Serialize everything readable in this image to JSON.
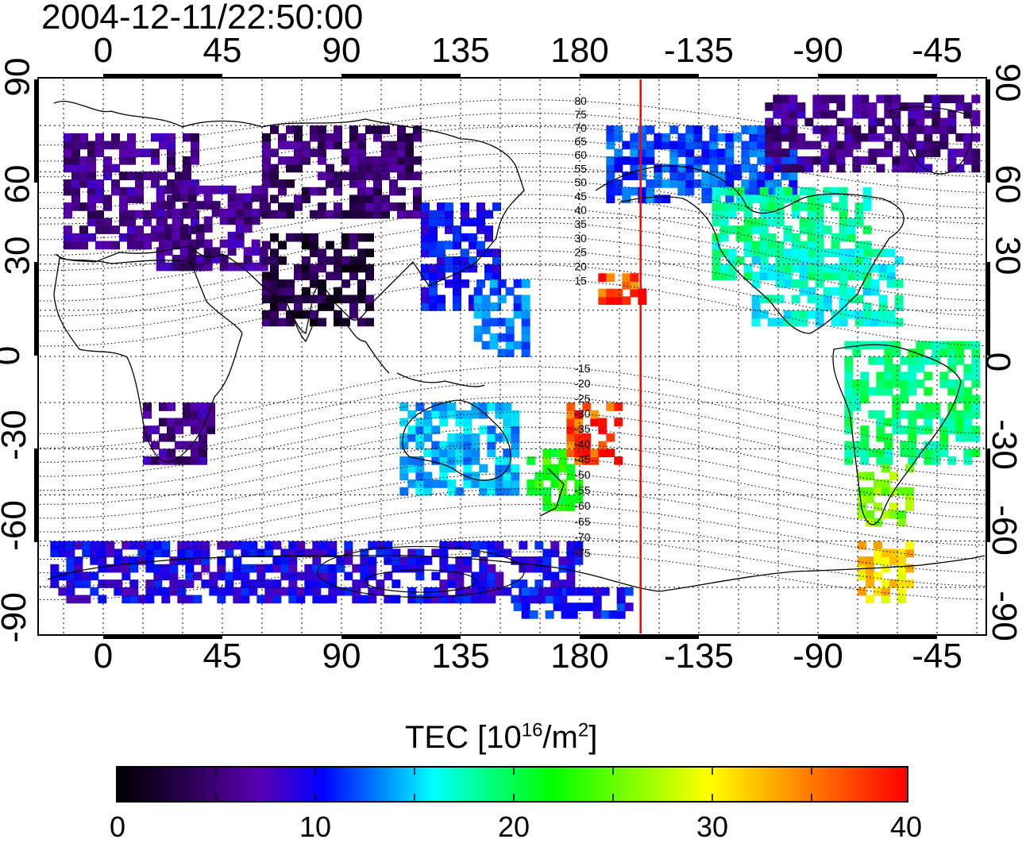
{
  "title": "2004-12-11/22:50:00",
  "map": {
    "x_ticks_top": [
      "0",
      "45",
      "90",
      "135",
      "180",
      "-135",
      "-90",
      "-45"
    ],
    "x_ticks_bottom": [
      "0",
      "45",
      "90",
      "135",
      "180",
      "-135",
      "-90",
      "-45"
    ],
    "y_ticks_left": [
      "90",
      "60",
      "30",
      "0",
      "-30",
      "-60",
      "-90"
    ],
    "y_ticks_right": [
      "90",
      "60",
      "30",
      "0",
      "-30",
      "-60",
      "-90"
    ],
    "terminator_longitude": -157,
    "terminator_color": "#ff0000",
    "contour_labels": [
      "80",
      "75",
      "70",
      "65",
      "60",
      "55",
      "50",
      "45",
      "40",
      "35",
      "30",
      "25",
      "20",
      "15",
      "-15",
      "-20",
      "-25",
      "-30",
      "-35",
      "-40",
      "-45",
      "-50",
      "-55",
      "-60",
      "-65",
      "-70",
      "-75"
    ]
  },
  "colorbar": {
    "label_main": "TEC  [10",
    "label_exp": "16",
    "label_unit": "/m",
    "label_exp2": "2",
    "label_end": "]",
    "ticks": [
      "0",
      "10",
      "20",
      "30",
      "40"
    ],
    "min": 0,
    "max": 40,
    "colors": [
      "#000000",
      "#2a0050",
      "#5a00b0",
      "#0000ff",
      "#0080ff",
      "#00ffff",
      "#00ff80",
      "#00ff00",
      "#80ff00",
      "#ffff00",
      "#ff8000",
      "#ff0000"
    ]
  },
  "tec_regions": [
    {
      "lon": [
        -15,
        35
      ],
      "lat": [
        35,
        72
      ],
      "value": 6
    },
    {
      "lon": [
        20,
        60
      ],
      "lat": [
        28,
        55
      ],
      "value": 6
    },
    {
      "lon": [
        60,
        120
      ],
      "lat": [
        45,
        75
      ],
      "value": 5
    },
    {
      "lon": [
        60,
        100
      ],
      "lat": [
        10,
        40
      ],
      "value": 3
    },
    {
      "lon": [
        120,
        150
      ],
      "lat": [
        15,
        50
      ],
      "value": 11
    },
    {
      "lon": [
        140,
        160
      ],
      "lat": [
        0,
        25
      ],
      "value": 14
    },
    {
      "lon": [
        112,
        155
      ],
      "lat": [
        -45,
        -15
      ],
      "value": 16
    },
    {
      "lon": [
        160,
        180
      ],
      "lat": [
        -50,
        -30
      ],
      "value": 26
    },
    {
      "lon": [
        175,
        195
      ],
      "lat": [
        -35,
        -15
      ],
      "value": 38
    },
    {
      "lon": [
        187,
        205
      ],
      "lat": [
        17,
        26
      ],
      "value": 38
    },
    {
      "lon": [
        190,
        260
      ],
      "lat": [
        50,
        75
      ],
      "value": 13
    },
    {
      "lon": [
        230,
        290
      ],
      "lat": [
        25,
        55
      ],
      "value": 21
    },
    {
      "lon": [
        245,
        300
      ],
      "lat": [
        10,
        35
      ],
      "value": 19
    },
    {
      "lon": [
        250,
        330
      ],
      "lat": [
        60,
        85
      ],
      "value": 6
    },
    {
      "lon": [
        280,
        330
      ],
      "lat": [
        -35,
        5
      ],
      "value": 22
    },
    {
      "lon": [
        285,
        305
      ],
      "lat": [
        -55,
        -35
      ],
      "value": 29
    },
    {
      "lon": [
        285,
        305
      ],
      "lat": [
        -80,
        -60
      ],
      "value": 34
    },
    {
      "lon": [
        15,
        40
      ],
      "lat": [
        -35,
        -15
      ],
      "value": 6
    },
    {
      "lon": [
        -20,
        180
      ],
      "lat": [
        -80,
        -60
      ],
      "value": 10
    },
    {
      "lon": [
        155,
        200
      ],
      "lat": [
        -85,
        -75
      ],
      "value": 11
    }
  ]
}
